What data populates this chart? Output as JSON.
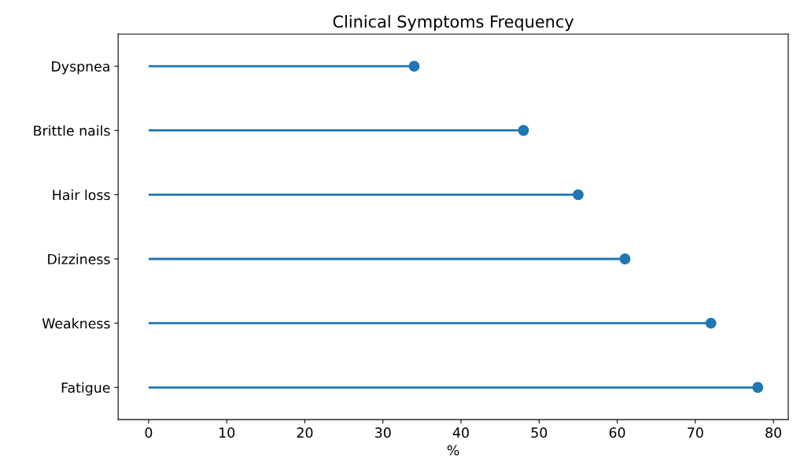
{
  "chart_data": {
    "type": "lollipop",
    "orientation": "horizontal",
    "title": "Clinical Symptoms Frequency",
    "xlabel": "%",
    "categories": [
      "Dyspnea",
      "Brittle nails",
      "Hair loss",
      "Dizziness",
      "Weakness",
      "Fatigue"
    ],
    "values": [
      34,
      48,
      55,
      61,
      72,
      78
    ],
    "color": "#1f77b4",
    "marker": "circle",
    "xlim": [
      -3.9,
      81.9
    ],
    "xticks": [
      0,
      10,
      20,
      30,
      40,
      50,
      60,
      70,
      80
    ],
    "grid": false
  }
}
